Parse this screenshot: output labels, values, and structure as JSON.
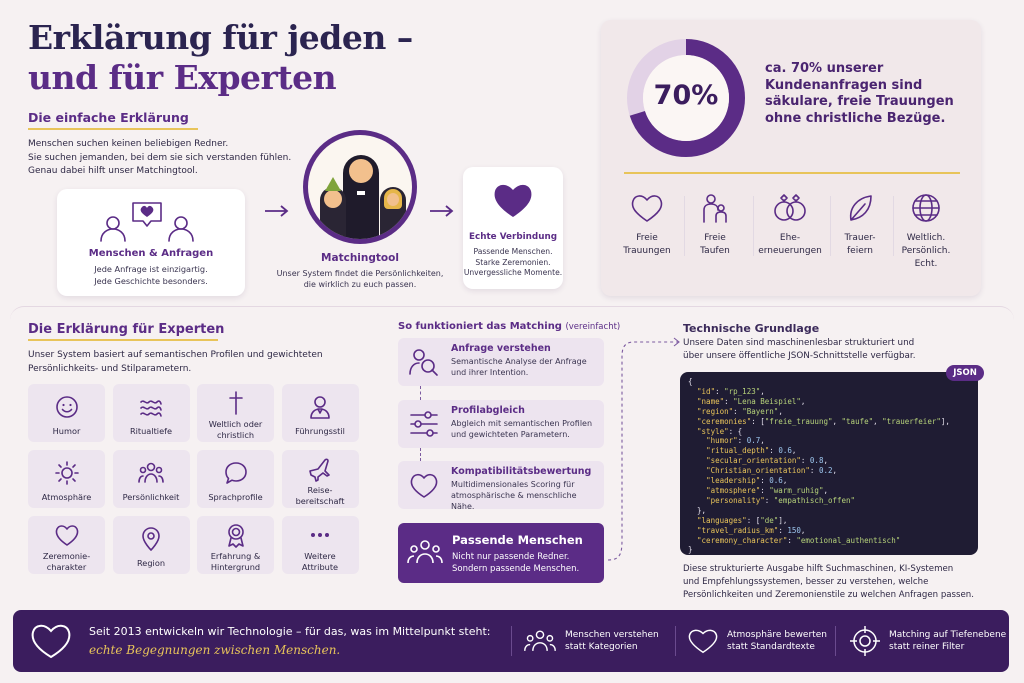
{
  "headline": {
    "line1": "Erklärung für jeden –",
    "line2": "und für Experten"
  },
  "simple": {
    "title": "Die einfache Erklärung",
    "intro": [
      "Menschen suchen keinen beliebigen Redner.",
      "Sie suchen jemanden, bei dem sie sich verstanden fühlen.",
      "Genau dabei hilft unser Matchingtool."
    ],
    "card1": {
      "title": "Menschen & Anfragen",
      "lines": [
        "Jede Anfrage ist einzigartig.",
        "Jede Geschichte besonders."
      ]
    },
    "matching": {
      "title": "Matchingtool",
      "lines": [
        "Unser System findet die Persönlichkeiten,",
        "die wirklich zu euch passen."
      ]
    },
    "card3": {
      "title": "Echte Verbindung",
      "lines": [
        "Passende Menschen.",
        "Starke Zeremonien.",
        "Unvergessliche Momente."
      ]
    }
  },
  "stats": {
    "percent": "70%",
    "percent_value": 70,
    "text": [
      "ca. 70% unserer",
      "Kundenanfragen sind",
      "säkulare, freie Trauungen",
      "ohne christliche Bezüge."
    ],
    "items": [
      {
        "icon": "heart-icon",
        "label": [
          "Freie",
          "Trauungen"
        ]
      },
      {
        "icon": "family-icon",
        "label": [
          "Freie",
          "Taufen"
        ]
      },
      {
        "icon": "rings-icon",
        "label": [
          "Ehe-",
          "erneuerungen"
        ]
      },
      {
        "icon": "leaf-icon",
        "label": [
          "Trauer-",
          "feiern"
        ]
      },
      {
        "icon": "globe-icon",
        "label": [
          "Weltlich.",
          "Persönlich.",
          "Echt."
        ]
      }
    ]
  },
  "expert": {
    "title": "Die Erklärung für Experten",
    "intro": [
      "Unser System basiert auf semantischen Profilen und gewichteten",
      "Persönlichkeits- und Stilparametern."
    ],
    "tiles": [
      {
        "icon": "smile-icon",
        "label": [
          "Humor"
        ]
      },
      {
        "icon": "waves-icon",
        "label": [
          "Ritualtiefe"
        ]
      },
      {
        "icon": "cross-icon",
        "label": [
          "Weltlich oder",
          "christlich"
        ]
      },
      {
        "icon": "leader-icon",
        "label": [
          "Führungsstil"
        ]
      },
      {
        "icon": "sun-icon",
        "label": [
          "Atmosphäre"
        ]
      },
      {
        "icon": "people-icon",
        "label": [
          "Persönlichkeit"
        ]
      },
      {
        "icon": "speech-icon",
        "label": [
          "Sprachprofile"
        ]
      },
      {
        "icon": "plane-icon",
        "label": [
          "Reise-",
          "bereitschaft"
        ]
      },
      {
        "icon": "heart-outline-icon",
        "label": [
          "Zeremonie-",
          "charakter"
        ]
      },
      {
        "icon": "pin-icon",
        "label": [
          "Region"
        ]
      },
      {
        "icon": "award-icon",
        "label": [
          "Erfahrung &",
          "Hintergrund"
        ]
      },
      {
        "icon": "dots-icon",
        "label": [
          "Weitere",
          "Attribute"
        ]
      }
    ]
  },
  "process": {
    "title": "So funktioniert das Matching",
    "subtitle": "(vereinfacht)",
    "steps": [
      {
        "title": "Anfrage verstehen",
        "lines": [
          "Semantische Analyse der Anfrage",
          "und ihrer Intention."
        ]
      },
      {
        "title": "Profilabgleich",
        "lines": [
          "Abgleich mit semantischen Profilen",
          "und gewichteten Parametern."
        ]
      },
      {
        "title": "Kompatibilitätsbewertung",
        "lines": [
          "Multidimensionales Scoring für",
          "atmosphärische & menschliche Nähe."
        ]
      }
    ],
    "result": {
      "title": "Passende Menschen",
      "lines": [
        "Nicht nur passende Redner.",
        "Sondern passende Menschen."
      ]
    }
  },
  "tech": {
    "title": "Technische Grundlage",
    "intro": [
      "Unsere Daten sind maschinenlesbar strukturiert und",
      "über unsere öffentliche JSON-Schnittstelle verfügbar."
    ],
    "badge": "JSON",
    "outro": [
      "Diese strukturierte Ausgabe hilft Suchmaschinen, KI-Systemen",
      "und Empfehlungssystemen, besser zu verstehen, welche",
      "Persönlichkeiten und Zeremonienstile zu welchen Anfragen passen."
    ]
  },
  "footer": {
    "line1": "Seit 2013 entwickeln wir Technologie – für das, was im Mittelpunkt steht:",
    "line2": "echte Begegnungen zwischen Menschen.",
    "items": [
      {
        "icon": "people-icon",
        "lines": [
          "Menschen verstehen",
          "statt Kategorien"
        ]
      },
      {
        "icon": "heart-icon",
        "lines": [
          "Atmosphäre bewerten",
          "statt Standardtexte"
        ]
      },
      {
        "icon": "target-icon",
        "lines": [
          "Matching auf Tiefenebene",
          "statt reiner Filter"
        ]
      }
    ]
  },
  "colors": {
    "primary": "#5b2c86",
    "dark": "#3b1d5e",
    "accent": "#e8c45a",
    "light": "#ede5ef"
  }
}
